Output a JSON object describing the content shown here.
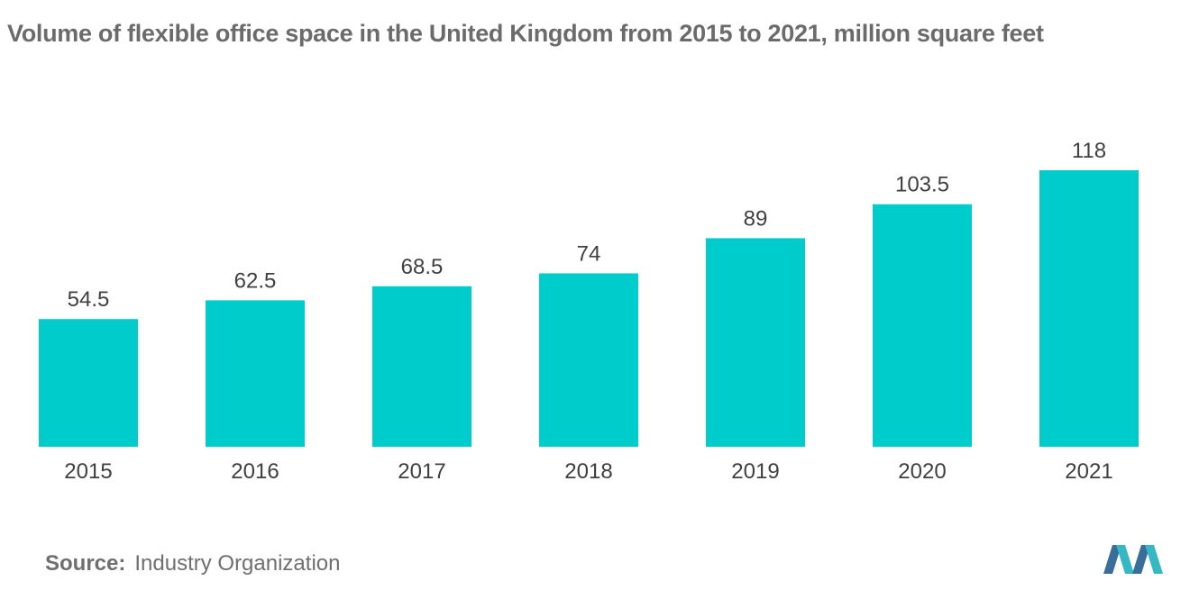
{
  "chart_data": {
    "type": "bar",
    "title": "Volume of flexible office space in the United Kingdom from 2015 to 2021, million square feet",
    "categories": [
      "2015",
      "2016",
      "2017",
      "2018",
      "2019",
      "2020",
      "2021"
    ],
    "values": [
      54.5,
      62.5,
      68.5,
      74,
      89,
      103.5,
      118
    ],
    "value_labels": [
      "54.5",
      "62.5",
      "68.5",
      "74",
      "89",
      "103.5",
      "118"
    ],
    "xlabel": "",
    "ylabel": "",
    "ylim": [
      0,
      118
    ],
    "grid": false,
    "legend": "none",
    "bar_color": "#00cccc"
  },
  "source": {
    "label": "Source:",
    "text": "Industry Organization"
  },
  "colors": {
    "bar": "#00cccc",
    "logo_dark": "#3a6e9a",
    "logo_light": "#35b8c4"
  },
  "icons": {
    "logo": "mordor-intelligence-logo"
  }
}
